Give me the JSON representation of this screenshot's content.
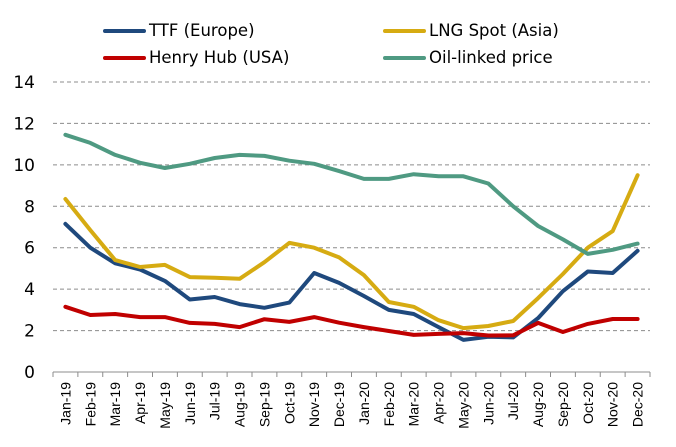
{
  "chart_data": {
    "type": "line",
    "title": "",
    "xlabel": "",
    "ylabel": "",
    "ylim": [
      0,
      14
    ],
    "yticks": [
      0,
      2,
      4,
      6,
      8,
      10,
      12,
      14
    ],
    "grid": "horizontal-dashed",
    "legend_position": "top",
    "categories": [
      "Jan-19",
      "Feb-19",
      "Mar-19",
      "Apr-19",
      "May-19",
      "Jun-19",
      "Jul-19",
      "Aug-19",
      "Sep-19",
      "Oct-19",
      "Nov-19",
      "Dec-19",
      "Jan-20",
      "Feb-20",
      "Mar-20",
      "Apr-20",
      "May-20",
      "Jun-20",
      "Jul-20",
      "Aug-20",
      "Sep-20",
      "Oct-20",
      "Nov-20",
      "Dec-20"
    ],
    "series": [
      {
        "name": "TTF (Europe)",
        "color": "#1F497D",
        "values": [
          7.15,
          6.0,
          5.25,
          4.95,
          4.4,
          3.5,
          3.62,
          3.28,
          3.1,
          3.35,
          4.78,
          4.3,
          3.67,
          3.0,
          2.8,
          2.17,
          1.55,
          1.7,
          1.67,
          2.6,
          3.9,
          4.85,
          4.78,
          5.85
        ]
      },
      {
        "name": "LNG Spot (Asia)",
        "color": "#D6AB12",
        "values": [
          8.35,
          6.85,
          5.4,
          5.07,
          5.17,
          4.58,
          4.55,
          4.5,
          5.3,
          6.23,
          6.0,
          5.53,
          4.68,
          3.38,
          3.15,
          2.5,
          2.12,
          2.22,
          2.46,
          3.57,
          4.73,
          6.0,
          6.8,
          9.5
        ]
      },
      {
        "name": "Henry Hub (USA)",
        "color": "#C00000",
        "values": [
          3.15,
          2.75,
          2.8,
          2.65,
          2.65,
          2.37,
          2.32,
          2.17,
          2.55,
          2.42,
          2.65,
          2.38,
          2.17,
          1.98,
          1.79,
          1.84,
          1.88,
          1.76,
          1.77,
          2.37,
          1.93,
          2.32,
          2.56,
          2.56
        ]
      },
      {
        "name": "Oil-linked price",
        "color": "#4F9A82",
        "values": [
          11.45,
          11.06,
          10.48,
          10.1,
          9.85,
          10.05,
          10.33,
          10.48,
          10.43,
          10.2,
          10.05,
          9.7,
          9.32,
          9.32,
          9.55,
          9.45,
          9.45,
          9.1,
          8.0,
          7.05,
          6.4,
          5.7,
          5.9,
          6.2
        ]
      }
    ]
  },
  "legend": {
    "items": [
      {
        "label": "TTF (Europe)",
        "color": "#1F497D"
      },
      {
        "label": "LNG Spot (Asia)",
        "color": "#D6AB12"
      },
      {
        "label": "Henry Hub (USA)",
        "color": "#C00000"
      },
      {
        "label": "Oil-linked price",
        "color": "#4F9A82"
      }
    ]
  }
}
